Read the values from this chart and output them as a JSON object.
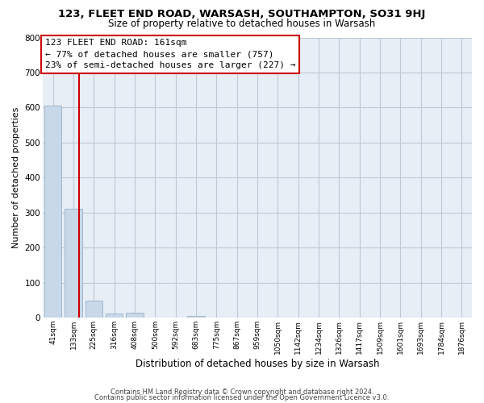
{
  "title": "123, FLEET END ROAD, WARSASH, SOUTHAMPTON, SO31 9HJ",
  "subtitle": "Size of property relative to detached houses in Warsash",
  "xlabel": "Distribution of detached houses by size in Warsash",
  "ylabel": "Number of detached properties",
  "bar_labels": [
    "41sqm",
    "133sqm",
    "225sqm",
    "316sqm",
    "408sqm",
    "500sqm",
    "592sqm",
    "683sqm",
    "775sqm",
    "867sqm",
    "959sqm",
    "1050sqm",
    "1142sqm",
    "1234sqm",
    "1326sqm",
    "1417sqm",
    "1509sqm",
    "1601sqm",
    "1693sqm",
    "1784sqm",
    "1876sqm"
  ],
  "bar_values": [
    605,
    310,
    48,
    11,
    13,
    0,
    0,
    4,
    0,
    0,
    0,
    0,
    0,
    0,
    0,
    0,
    0,
    0,
    0,
    0,
    0
  ],
  "bar_color": "#c8d8e8",
  "bar_edgecolor": "#a0b8cc",
  "vline_x": 1.28,
  "vline_color": "#cc0000",
  "ylim": [
    0,
    800
  ],
  "yticks": [
    0,
    100,
    200,
    300,
    400,
    500,
    600,
    700,
    800
  ],
  "annotation_box_text": "123 FLEET END ROAD: 161sqm\n← 77% of detached houses are smaller (757)\n23% of semi-detached houses are larger (227) →",
  "annotation_box_color": "#cc0000",
  "footer_line1": "Contains HM Land Registry data © Crown copyright and database right 2024.",
  "footer_line2": "Contains public sector information licensed under the Open Government Licence v3.0.",
  "background_color": "#ffffff",
  "plot_bg_color": "#e8eef5",
  "grid_color": "#c0c8d8",
  "title_fontsize": 9.5,
  "subtitle_fontsize": 8.5,
  "xlabel_fontsize": 8.5,
  "ylabel_fontsize": 8.0,
  "ytick_fontsize": 7.5,
  "xtick_fontsize": 6.5,
  "annotation_fontsize": 8.0,
  "footer_fontsize": 6.0
}
